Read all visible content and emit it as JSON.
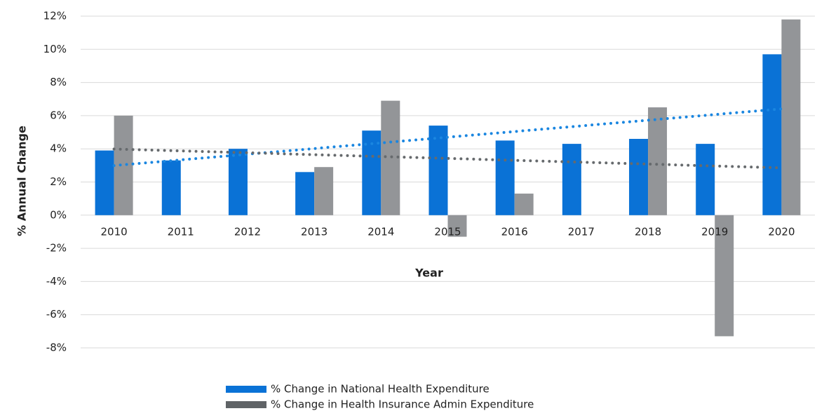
{
  "chart_data": {
    "type": "bar",
    "y_label": "% Annual Change",
    "x_label": "Year",
    "categories": [
      "2010",
      "2011",
      "2012",
      "2013",
      "2014",
      "2015",
      "2016",
      "2017",
      "2018",
      "2019",
      "2020"
    ],
    "series": [
      {
        "name": "% Change in National Health Expenditure",
        "color": "#0a72d6",
        "values": [
          3.9,
          3.3,
          4.0,
          2.6,
          5.1,
          5.4,
          4.5,
          4.3,
          4.6,
          4.3,
          9.7
        ]
      },
      {
        "name": "% Change in Health Insurance Admin Expenditure",
        "color": "#939598",
        "values": [
          6.0,
          null,
          null,
          2.9,
          6.9,
          -1.3,
          1.3,
          null,
          6.5,
          -7.3,
          11.8
        ]
      }
    ],
    "trendline": true,
    "ylim": [
      -8,
      12
    ],
    "yticks": [
      {
        "value": -8,
        "label": "-8%"
      },
      {
        "value": -6,
        "label": "-6%"
      },
      {
        "value": -4,
        "label": "-4%"
      },
      {
        "value": -2,
        "label": "-2%"
      },
      {
        "value": 0,
        "label": "0%"
      },
      {
        "value": 2,
        "label": "2%"
      },
      {
        "value": 4,
        "label": "4%"
      },
      {
        "value": 6,
        "label": "6%"
      },
      {
        "value": 8,
        "label": "8%"
      },
      {
        "value": 10,
        "label": "10%"
      },
      {
        "value": 12,
        "label": "12%"
      }
    ],
    "grid": true,
    "legend": "bottom"
  }
}
